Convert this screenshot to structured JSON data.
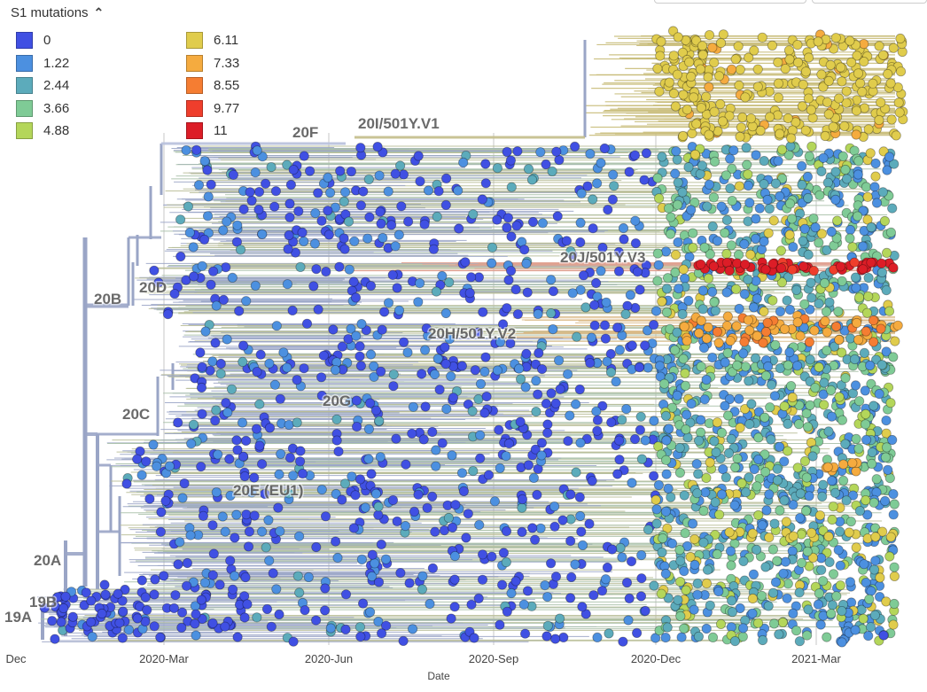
{
  "legend": {
    "title": "S1 mutations",
    "toggle_icon": "chevron-up-icon",
    "items": [
      {
        "label": "0",
        "color": "#4050e3"
      },
      {
        "label": "1.22",
        "color": "#4c90e0"
      },
      {
        "label": "2.44",
        "color": "#5cabbb"
      },
      {
        "label": "3.66",
        "color": "#7fcb96"
      },
      {
        "label": "4.88",
        "color": "#b4d65a"
      },
      {
        "label": "6.11",
        "color": "#e0cc4c"
      },
      {
        "label": "7.33",
        "color": "#f5ab3f"
      },
      {
        "label": "8.55",
        "color": "#f57d32"
      },
      {
        "label": "9.77",
        "color": "#ef3e2c"
      },
      {
        "label": "11",
        "color": "#dc1d27"
      }
    ]
  },
  "chart_data": {
    "type": "scatter",
    "xlabel": "Date",
    "color_by": "S1 mutations",
    "x_ticks": [
      "Dec",
      "2020-Mar",
      "2020-Jun",
      "2020-Sep",
      "2020-Dec",
      "2021-Mar"
    ],
    "clades": [
      {
        "label": "19A"
      },
      {
        "label": "19B"
      },
      {
        "label": "20A"
      },
      {
        "label": "20B"
      },
      {
        "label": "20C"
      },
      {
        "label": "20D"
      },
      {
        "label": "20E (EU1)"
      },
      {
        "label": "20F"
      },
      {
        "label": "20G"
      },
      {
        "label": "20H/501Y.V2"
      },
      {
        "label": "20I/501Y.V1"
      },
      {
        "label": "20J/501Y.V3"
      }
    ]
  }
}
